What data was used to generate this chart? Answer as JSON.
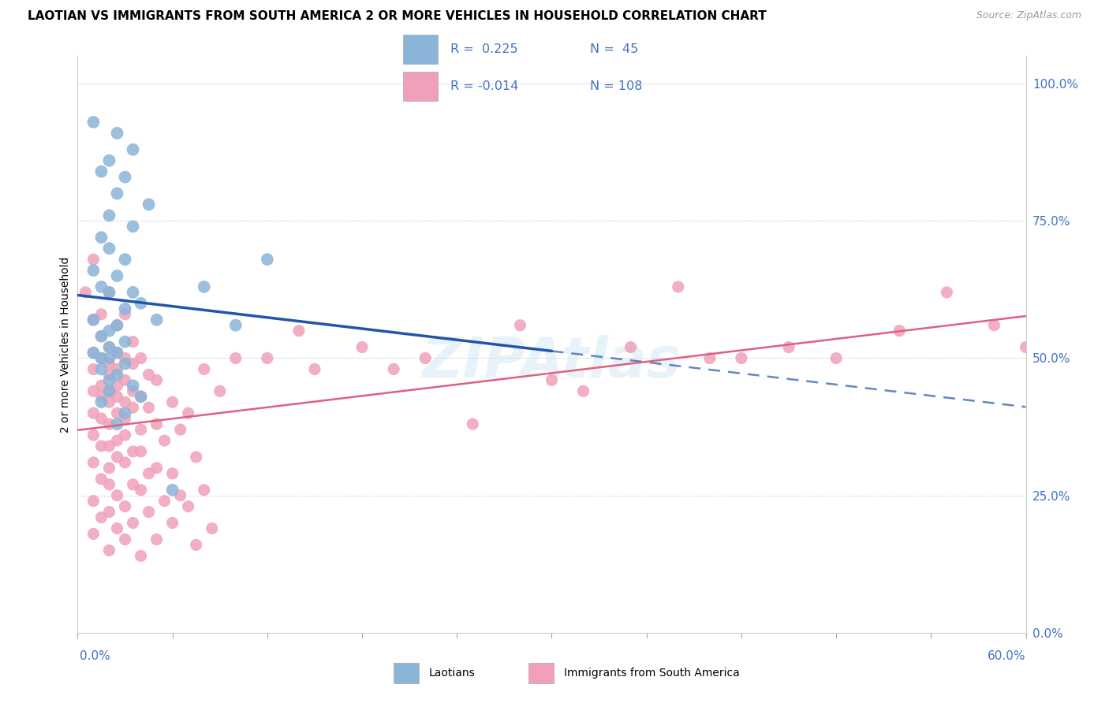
{
  "title": "LAOTIAN VS IMMIGRANTS FROM SOUTH AMERICA 2 OR MORE VEHICLES IN HOUSEHOLD CORRELATION CHART",
  "source": "Source: ZipAtlas.com",
  "ylabel": "2 or more Vehicles in Household",
  "ytick_labels": [
    "0.0%",
    "25.0%",
    "50.0%",
    "75.0%",
    "100.0%"
  ],
  "ytick_values": [
    0,
    25,
    50,
    75,
    100
  ],
  "xlim": [
    0,
    60
  ],
  "ylim": [
    0,
    105
  ],
  "label_color": "#4472c4",
  "blue_color": "#8ab4d8",
  "pink_color": "#f0a0b8",
  "blue_line_color": "#2255aa",
  "pink_line_color": "#e06080",
  "legend_box_color": "#ffffff",
  "blue_scatter_x": [
    1.0,
    2.5,
    3.5,
    2.0,
    1.5,
    3.0,
    2.5,
    4.5,
    2.0,
    3.5,
    1.5,
    2.0,
    3.0,
    1.0,
    2.5,
    1.5,
    3.5,
    2.0,
    4.0,
    3.0,
    1.0,
    2.5,
    2.0,
    1.5,
    3.0,
    2.0,
    1.0,
    2.5,
    1.5,
    2.0,
    3.0,
    1.5,
    2.5,
    2.0,
    3.5,
    2.0,
    4.0,
    1.5,
    3.0,
    2.5,
    5.0,
    8.0,
    10.0,
    12.0,
    6.0
  ],
  "blue_scatter_y": [
    93,
    91,
    88,
    86,
    84,
    83,
    80,
    78,
    76,
    74,
    72,
    70,
    68,
    66,
    65,
    63,
    62,
    62,
    60,
    59,
    57,
    56,
    55,
    54,
    53,
    52,
    51,
    51,
    50,
    50,
    49,
    48,
    47,
    46,
    45,
    44,
    43,
    42,
    40,
    38,
    57,
    63,
    56,
    68,
    26
  ],
  "pink_scatter_x": [
    1.0,
    2.0,
    1.5,
    3.0,
    0.5,
    1.0,
    2.5,
    1.5,
    3.5,
    2.0,
    1.0,
    2.5,
    3.0,
    4.0,
    1.5,
    2.0,
    3.5,
    1.0,
    2.5,
    4.5,
    2.0,
    3.0,
    5.0,
    1.5,
    2.5,
    3.5,
    1.0,
    2.0,
    4.0,
    2.5,
    1.5,
    3.0,
    6.0,
    2.0,
    4.5,
    3.5,
    1.0,
    2.5,
    7.0,
    3.0,
    1.5,
    5.0,
    2.0,
    4.0,
    6.5,
    1.0,
    3.0,
    2.5,
    5.5,
    2.0,
    1.5,
    4.0,
    3.5,
    2.5,
    7.5,
    1.0,
    3.0,
    5.0,
    2.0,
    6.0,
    4.5,
    1.5,
    3.5,
    2.0,
    8.0,
    4.0,
    2.5,
    6.5,
    1.0,
    5.5,
    3.0,
    7.0,
    2.0,
    4.5,
    1.5,
    6.0,
    3.5,
    2.5,
    8.5,
    1.0,
    5.0,
    3.0,
    7.5,
    2.0,
    4.0,
    10.0,
    14.0,
    18.0,
    20.0,
    22.0,
    25.0,
    28.0,
    32.0,
    35.0,
    38.0,
    42.0,
    45.0,
    48.0,
    52.0,
    55.0,
    12.0,
    15.0,
    30.0,
    40.0,
    58.0,
    60.0,
    8.0,
    9.0
  ],
  "pink_scatter_y": [
    68,
    62,
    58,
    58,
    62,
    57,
    56,
    54,
    53,
    52,
    51,
    51,
    50,
    50,
    50,
    49,
    49,
    48,
    48,
    47,
    47,
    46,
    46,
    45,
    45,
    44,
    44,
    44,
    43,
    43,
    43,
    42,
    42,
    42,
    41,
    41,
    40,
    40,
    40,
    39,
    39,
    38,
    38,
    37,
    37,
    36,
    36,
    35,
    35,
    34,
    34,
    33,
    33,
    32,
    32,
    31,
    31,
    30,
    30,
    29,
    29,
    28,
    27,
    27,
    26,
    26,
    25,
    25,
    24,
    24,
    23,
    23,
    22,
    22,
    21,
    20,
    20,
    19,
    19,
    18,
    17,
    17,
    16,
    15,
    14,
    50,
    55,
    52,
    48,
    50,
    38,
    56,
    44,
    52,
    63,
    50,
    52,
    50,
    55,
    62,
    50,
    48,
    46,
    50,
    56,
    52,
    48,
    44
  ]
}
